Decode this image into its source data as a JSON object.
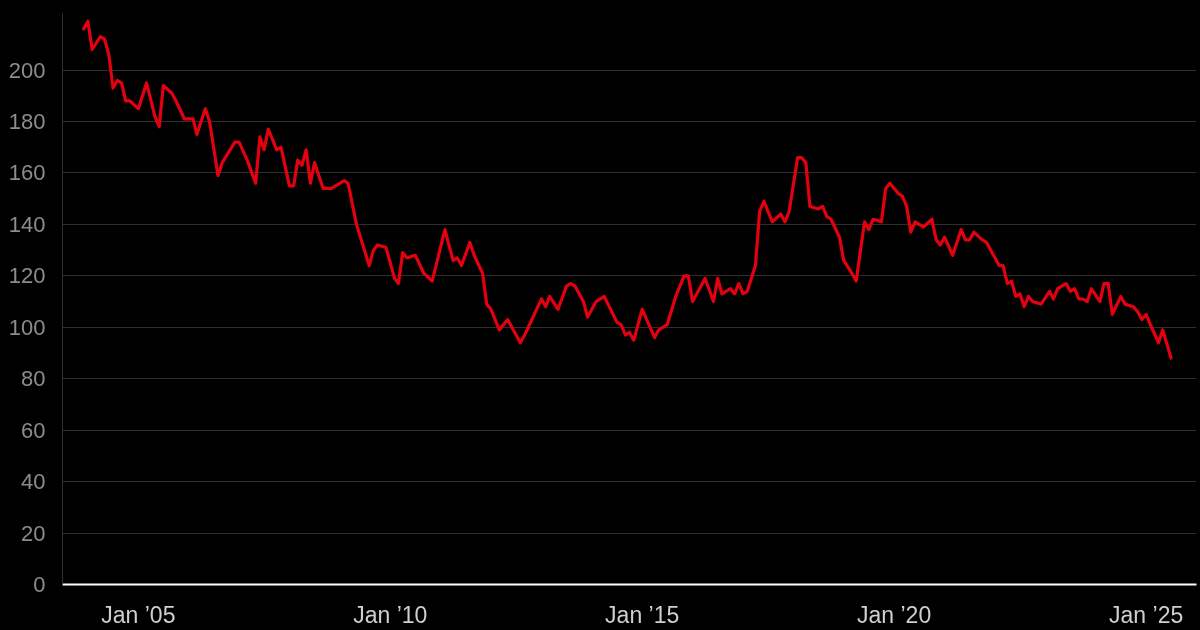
{
  "chart_data": {
    "type": "line",
    "color": "#e3000f",
    "x": [
      "2003-12",
      "2004-01",
      "2004-02",
      "2004-04",
      "2004-05",
      "2004-06",
      "2004-07",
      "2004-08",
      "2004-09",
      "2004-10",
      "2004-11",
      "2005-01",
      "2005-03",
      "2005-05",
      "2005-06",
      "2005-07",
      "2005-09",
      "2005-10",
      "2005-12",
      "2006-02",
      "2006-03",
      "2006-05",
      "2006-06",
      "2006-08",
      "2006-09",
      "2006-12",
      "2007-01",
      "2007-03",
      "2007-05",
      "2007-06",
      "2007-07",
      "2007-08",
      "2007-10",
      "2007-11",
      "2008-01",
      "2008-02",
      "2008-03",
      "2008-04",
      "2008-05",
      "2008-06",
      "2008-07",
      "2008-09",
      "2008-11",
      "2009-02",
      "2009-03",
      "2009-05",
      "2009-08",
      "2009-09",
      "2009-10",
      "2009-12",
      "2010-02",
      "2010-03",
      "2010-04",
      "2010-05",
      "2010-07",
      "2010-09",
      "2010-11",
      "2011-02",
      "2011-04",
      "2011-05",
      "2011-06",
      "2011-08",
      "2011-09",
      "2011-11",
      "2011-12",
      "2012-01",
      "2012-03",
      "2012-05",
      "2012-08",
      "2012-09",
      "2013-01",
      "2013-02",
      "2013-03",
      "2013-05",
      "2013-07",
      "2013-08",
      "2013-09",
      "2013-11",
      "2013-12",
      "2014-02",
      "2014-04",
      "2014-07",
      "2014-08",
      "2014-09",
      "2014-10",
      "2014-11",
      "2015-01",
      "2015-04",
      "2015-05",
      "2015-07",
      "2015-09",
      "2015-11",
      "2015-12",
      "2016-01",
      "2016-04",
      "2016-06",
      "2016-07",
      "2016-08",
      "2016-10",
      "2016-11",
      "2016-12",
      "2017-01",
      "2017-02",
      "2017-04",
      "2017-05",
      "2017-06",
      "2017-08",
      "2017-10",
      "2017-11",
      "2017-12",
      "2018-02",
      "2018-03",
      "2018-04",
      "2018-05",
      "2018-07",
      "2018-08",
      "2018-09",
      "2018-10",
      "2018-12",
      "2019-01",
      "2019-03",
      "2019-04",
      "2019-06",
      "2019-07",
      "2019-08",
      "2019-10",
      "2019-11",
      "2019-12",
      "2020-02",
      "2020-03",
      "2020-04",
      "2020-05",
      "2020-06",
      "2020-08",
      "2020-10",
      "2020-11",
      "2020-12",
      "2021-01",
      "2021-03",
      "2021-05",
      "2021-06",
      "2021-07",
      "2021-08",
      "2021-10",
      "2021-11",
      "2022-01",
      "2022-02",
      "2022-03",
      "2022-04",
      "2022-05",
      "2022-06",
      "2022-07",
      "2022-08",
      "2022-09",
      "2022-10",
      "2022-12",
      "2023-02",
      "2023-03",
      "2023-04",
      "2023-06",
      "2023-07",
      "2023-08",
      "2023-09",
      "2023-10",
      "2023-11",
      "2023-12",
      "2024-02",
      "2024-03",
      "2024-04",
      "2024-05",
      "2024-07",
      "2024-08",
      "2024-10",
      "2024-11",
      "2024-12",
      "2025-01",
      "2025-02",
      "2025-04",
      "2025-05",
      "2025-07"
    ],
    "values": [
      216,
      219,
      208,
      213,
      212,
      206,
      193,
      196,
      195,
      188,
      188,
      185,
      195,
      182,
      178,
      194,
      191,
      188,
      181,
      181,
      175,
      185,
      180,
      159,
      164,
      172,
      172,
      165,
      156,
      174,
      169,
      177,
      169,
      170,
      155,
      155,
      165,
      163,
      169,
      156,
      164,
      154,
      154,
      157,
      156,
      140,
      124,
      130,
      132,
      131,
      119,
      117,
      129,
      127,
      128,
      121,
      118,
      138,
      126,
      127,
      124,
      133,
      128,
      121,
      109,
      107,
      99,
      103,
      94,
      97,
      111,
      108,
      112,
      107,
      116,
      117,
      116,
      110,
      104,
      110,
      112,
      102,
      101,
      97,
      98,
      95,
      107,
      96,
      99,
      101,
      112,
      120,
      120,
      110,
      119,
      110,
      119,
      113,
      115,
      113,
      117,
      113,
      114,
      124,
      145,
      149,
      141,
      144,
      141,
      145,
      166,
      166,
      164,
      147,
      146,
      147,
      143,
      142,
      135,
      126,
      121,
      118,
      141,
      138,
      142,
      141,
      154,
      156,
      152,
      151,
      147,
      137,
      141,
      139,
      142,
      134,
      132,
      135,
      128,
      138,
      134,
      134,
      137,
      134,
      133,
      127,
      124,
      124,
      117,
      118,
      112,
      113,
      108,
      112,
      110,
      109,
      114,
      111,
      115,
      117,
      114,
      115,
      111,
      111,
      110,
      115,
      110,
      117,
      117,
      105,
      112,
      109,
      108,
      106,
      103,
      105,
      101,
      94,
      99,
      88
    ],
    "xlim": [
      "2003-07",
      "2026-01"
    ],
    "xticks": [
      {
        "value": "2005-01",
        "label": "Jan ’05"
      },
      {
        "value": "2010-01",
        "label": "Jan ’10"
      },
      {
        "value": "2015-01",
        "label": "Jan ’15"
      },
      {
        "value": "2020-01",
        "label": "Jan ’20"
      },
      {
        "value": "2025-01",
        "label": "Jan ’25"
      }
    ],
    "ylim": [
      0,
      222
    ],
    "yticks": [
      0,
      20,
      40,
      60,
      80,
      100,
      120,
      140,
      160,
      180,
      200
    ],
    "grid": "y"
  }
}
